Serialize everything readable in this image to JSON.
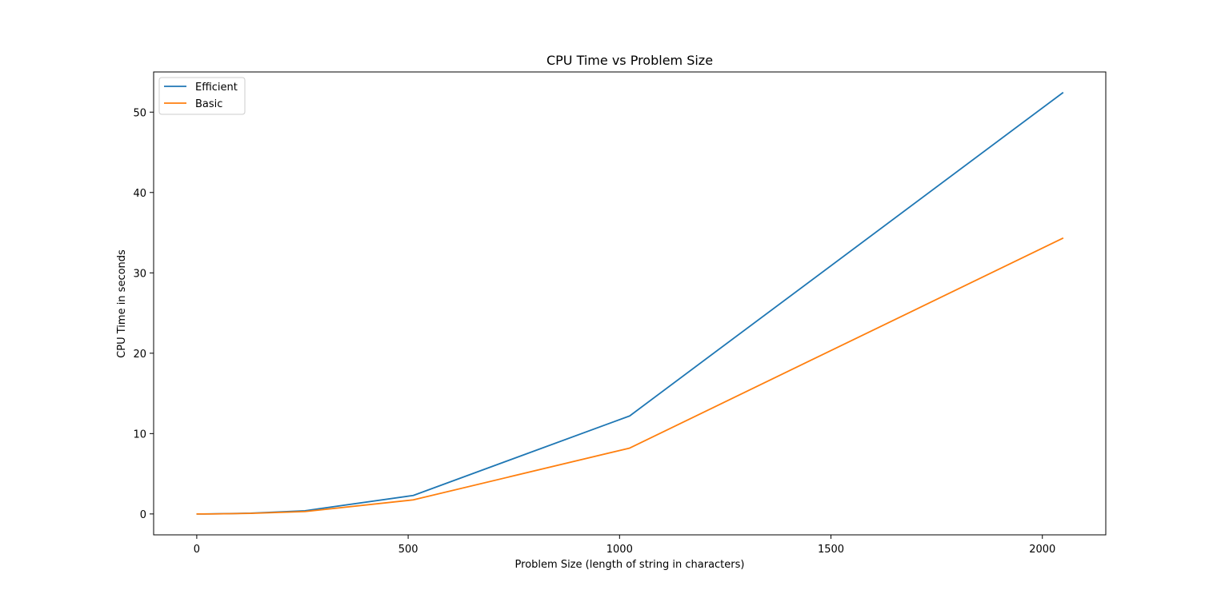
{
  "chart_data": {
    "type": "line",
    "title": "CPU Time vs Problem Size",
    "xlabel": "Problem Size (length of string in characters)",
    "ylabel": "CPU Time in seconds",
    "xlim": [
      -102,
      2150
    ],
    "ylim": [
      -2.6,
      55
    ],
    "xticks": [
      0,
      500,
      1000,
      1500,
      2000
    ],
    "yticks": [
      0,
      10,
      20,
      30,
      40,
      50
    ],
    "grid": false,
    "legend_position": "top-left",
    "series": [
      {
        "name": "Efficient",
        "color": "#1f77b4",
        "x": [
          1,
          2,
          4,
          8,
          16,
          32,
          64,
          128,
          256,
          512,
          1024,
          2048
        ],
        "y": [
          0.0,
          0.0,
          0.0,
          0.0,
          0.0,
          0.01,
          0.03,
          0.1,
          0.4,
          2.3,
          12.2,
          52.4
        ]
      },
      {
        "name": "Basic",
        "color": "#ff7f0e",
        "x": [
          1,
          2,
          4,
          8,
          16,
          32,
          64,
          128,
          256,
          512,
          1024,
          2048
        ],
        "y": [
          0.0,
          0.0,
          0.0,
          0.0,
          0.0,
          0.0,
          0.02,
          0.07,
          0.3,
          1.75,
          8.2,
          34.3
        ]
      }
    ]
  }
}
